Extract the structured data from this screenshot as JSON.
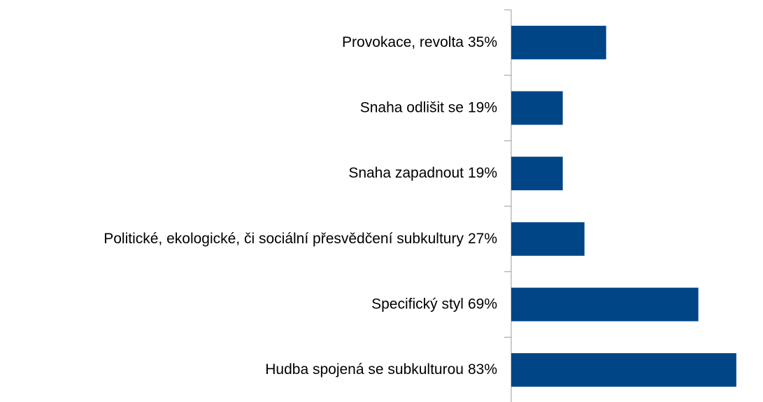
{
  "chart_data": {
    "type": "bar",
    "orientation": "horizontal",
    "categories": [
      "Provokace, revolta",
      "Snaha odlišit se",
      "Snaha zapadnout",
      "Politické, ekologické, či sociální přesvědčení subkultury",
      "Specifický styl",
      "Hudba spojená se subkulturou"
    ],
    "values": [
      35,
      19,
      19,
      27,
      69,
      83
    ],
    "value_labels": [
      "35%",
      "19%",
      "19%",
      "27%",
      "69%",
      "83%"
    ],
    "color": "#004586",
    "xlim": [
      0,
      90
    ]
  }
}
